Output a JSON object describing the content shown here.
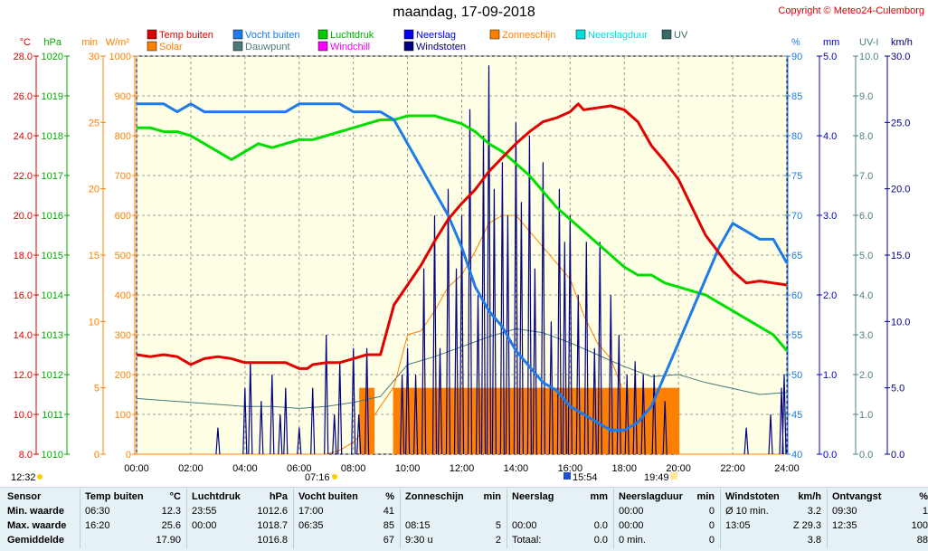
{
  "title": "maandag, 17-09-2018",
  "copyright": "Copyright © Meteo24-Culemborg",
  "legend": [
    {
      "label": "Temp buiten",
      "color": "#e00000"
    },
    {
      "label": "Solar",
      "color": "#ff8000"
    },
    {
      "label": "Vocht buiten",
      "color": "#1e7be8"
    },
    {
      "label": "Dauwpunt",
      "color": "#4a7a7a"
    },
    {
      "label": "Luchtdruk",
      "color": "#00cc00"
    },
    {
      "label": "Windchill",
      "color": "#ff00ff"
    },
    {
      "label": "Neerslag",
      "color": "#0000ee"
    },
    {
      "label": "Windstoten",
      "color": "#000080"
    },
    {
      "label": "Zonneschijn",
      "color": "#ff8000"
    },
    {
      "label": "Neerslagduur",
      "color": "#00dddd"
    },
    {
      "label": "UV",
      "color": "#3a6b6b"
    }
  ],
  "axis_units": {
    "temp": "°C",
    "pressure": "hPa",
    "minutes": "min",
    "solar": "W/m²",
    "humidity": "%",
    "rain": "mm",
    "uv": "UV-I",
    "wind": "km/h"
  },
  "chart_data": {
    "type": "line",
    "x_label": "time",
    "xlim": [
      0,
      24
    ],
    "x_ticks": [
      "00:00",
      "02:00",
      "04:00",
      "06:00",
      "08:00",
      "10:00",
      "12:00",
      "14:00",
      "16:00",
      "18:00",
      "20:00",
      "22:00",
      "24:00"
    ],
    "axes": {
      "temp": {
        "range": [
          8,
          28
        ],
        "ticks": [
          "8.0",
          "10.0",
          "12.0",
          "14.0",
          "16.0",
          "18.0",
          "20.0",
          "22.0",
          "24.0",
          "26.0",
          "28.0"
        ]
      },
      "pressure": {
        "range": [
          1010,
          1020
        ],
        "ticks": [
          "1010",
          "1011",
          "1012",
          "1013",
          "1014",
          "1015",
          "1016",
          "1017",
          "1018",
          "1019",
          "1020"
        ]
      },
      "minutes": {
        "range": [
          0,
          30
        ],
        "ticks": [
          "0",
          "5",
          "10",
          "15",
          "20",
          "25",
          "30"
        ]
      },
      "solar": {
        "range": [
          0,
          1000
        ],
        "ticks": [
          "0",
          "100",
          "200",
          "300",
          "400",
          "500",
          "600",
          "700",
          "800",
          "900",
          "1000"
        ]
      },
      "humidity": {
        "range": [
          40,
          90
        ],
        "ticks": [
          "40",
          "45",
          "50",
          "55",
          "60",
          "65",
          "70",
          "75",
          "80",
          "85",
          "90"
        ]
      },
      "rain": {
        "range": [
          0,
          5
        ],
        "ticks": [
          "0.0",
          "1.0",
          "2.0",
          "3.0",
          "4.0",
          "5.0"
        ]
      },
      "uv": {
        "range": [
          0,
          10
        ],
        "ticks": [
          "0.0",
          "1.0",
          "2.0",
          "3.0",
          "4.0",
          "5.0",
          "6.0",
          "7.0",
          "8.0",
          "9.0",
          "10.0"
        ]
      },
      "wind": {
        "range": [
          0,
          30
        ],
        "ticks": [
          "0.0",
          "5.0",
          "10.0",
          "15.0",
          "20.0",
          "25.0",
          "30.0"
        ]
      }
    },
    "series": [
      {
        "name": "Temp buiten",
        "axis": "temp",
        "x": [
          0,
          0.5,
          1,
          1.5,
          2,
          2.5,
          3,
          3.5,
          4,
          4.5,
          5,
          5.5,
          6,
          6.3,
          6.5,
          7,
          7.5,
          8,
          8.5,
          9,
          9.5,
          10,
          10.5,
          11,
          11.5,
          12,
          12.5,
          13,
          13.5,
          14,
          14.5,
          15,
          15.5,
          16,
          16.3,
          16.5,
          17,
          17.5,
          18,
          18.5,
          19,
          19.5,
          20,
          20.5,
          21,
          21.5,
          22,
          22.5,
          23,
          23.5,
          24
        ],
        "values": [
          13.0,
          12.9,
          13.0,
          12.9,
          12.5,
          12.8,
          12.9,
          12.8,
          12.6,
          12.6,
          12.6,
          12.6,
          12.3,
          12.3,
          12.5,
          12.6,
          12.6,
          12.8,
          13.0,
          13.0,
          15.5,
          16.5,
          17.5,
          18.7,
          19.8,
          20.6,
          21.3,
          22.2,
          22.9,
          23.6,
          24.2,
          24.7,
          24.9,
          25.2,
          25.6,
          25.3,
          25.4,
          25.5,
          25.3,
          24.7,
          23.5,
          22.7,
          21.8,
          20.4,
          19.0,
          18.1,
          17.2,
          16.6,
          16.7,
          16.6,
          16.5
        ]
      },
      {
        "name": "Vocht buiten",
        "axis": "humidity",
        "x": [
          0,
          0.5,
          1,
          1.5,
          2,
          2.5,
          3,
          3.5,
          4,
          4.5,
          5,
          5.5,
          6,
          6.5,
          7,
          7.5,
          8,
          8.5,
          9,
          9.5,
          10,
          10.5,
          11,
          11.5,
          12,
          12.5,
          13,
          13.5,
          14,
          14.5,
          15,
          15.5,
          16,
          16.5,
          17,
          17.5,
          18,
          18.5,
          19,
          19.5,
          20,
          20.5,
          21,
          21.5,
          22,
          22.5,
          23,
          23.5,
          24
        ],
        "values": [
          84,
          84,
          84,
          83,
          84,
          83,
          83,
          83,
          83,
          83,
          83,
          83,
          84,
          84,
          84,
          84,
          83,
          83,
          83,
          82,
          79,
          76,
          73,
          70,
          66,
          61,
          58,
          56,
          53,
          51,
          49,
          48,
          46,
          45,
          44,
          43,
          43,
          44,
          46,
          50,
          54,
          58,
          62,
          66,
          69,
          68,
          67,
          67,
          64
        ]
      },
      {
        "name": "Luchtdruk",
        "axis": "pressure",
        "x": [
          0,
          0.5,
          1,
          1.5,
          2,
          2.5,
          3,
          3.5,
          4,
          4.5,
          5,
          5.5,
          6,
          6.5,
          7,
          7.5,
          8,
          8.5,
          9,
          9.5,
          10,
          10.5,
          11,
          11.5,
          12,
          12.5,
          13,
          13.5,
          14,
          14.5,
          15,
          15.5,
          16,
          16.5,
          17,
          17.5,
          18,
          18.5,
          19,
          19.5,
          20,
          20.5,
          21,
          21.5,
          22,
          22.5,
          23,
          23.5,
          24
        ],
        "values": [
          1018.2,
          1018.2,
          1018.1,
          1018.1,
          1018.0,
          1017.8,
          1017.6,
          1017.4,
          1017.6,
          1017.8,
          1017.7,
          1017.8,
          1017.9,
          1017.9,
          1018.0,
          1018.1,
          1018.2,
          1018.3,
          1018.4,
          1018.4,
          1018.5,
          1018.5,
          1018.5,
          1018.4,
          1018.3,
          1018.1,
          1017.8,
          1017.6,
          1017.3,
          1017.0,
          1016.6,
          1016.2,
          1015.9,
          1015.6,
          1015.3,
          1015.0,
          1014.7,
          1014.5,
          1014.5,
          1014.3,
          1014.2,
          1014.1,
          1014.0,
          1013.8,
          1013.6,
          1013.4,
          1013.2,
          1013.0,
          1012.6
        ]
      },
      {
        "name": "Dauwpunt",
        "axis": "temp",
        "x": [
          0,
          1,
          2,
          3,
          4,
          5,
          6,
          7,
          8,
          9,
          10,
          11,
          12,
          13,
          14,
          15,
          16,
          17,
          18,
          19,
          20,
          21,
          22,
          23,
          24
        ],
        "values": [
          10.8,
          10.7,
          10.6,
          10.5,
          10.4,
          10.4,
          10.3,
          10.4,
          10.6,
          10.9,
          12.5,
          12.9,
          13.4,
          13.9,
          14.3,
          14.1,
          13.6,
          13.0,
          12.4,
          11.9,
          12.0,
          11.6,
          11.3,
          11.0,
          11.1
        ]
      },
      {
        "name": "Solar",
        "axis": "solar",
        "x": [
          0,
          7,
          7.5,
          8,
          8.5,
          9,
          9.5,
          10,
          10.5,
          11,
          11.5,
          12,
          12.5,
          13,
          13.5,
          14,
          14.5,
          15,
          15.5,
          16,
          16.5,
          17,
          17.5,
          18,
          18.5,
          19,
          19.5,
          20,
          24
        ],
        "values": [
          0,
          0,
          10,
          30,
          70,
          120,
          170,
          300,
          310,
          360,
          420,
          450,
          510,
          580,
          600,
          600,
          560,
          520,
          480,
          440,
          350,
          280,
          240,
          150,
          80,
          30,
          10,
          0,
          0
        ]
      },
      {
        "name": "Zonneschijn",
        "axis": "minutes",
        "type": "bar",
        "x": [
          8.25,
          9.5,
          9.8,
          10,
          10.5,
          11,
          11.5,
          12,
          12.5,
          13,
          13.5,
          14,
          14.5,
          15,
          15.5,
          16,
          16.5,
          17,
          17.5,
          18,
          18.5,
          19,
          19.5
        ],
        "values": [
          5,
          5,
          5,
          5,
          5,
          5,
          5,
          5,
          5,
          5,
          5,
          5,
          5,
          5,
          5,
          5,
          5,
          5,
          5,
          5,
          5,
          5,
          5
        ]
      },
      {
        "name": "Windstoten",
        "axis": "wind",
        "type": "spikes",
        "x": [
          3,
          4,
          4.2,
          4.6,
          5,
          5.3,
          5.5,
          6,
          6.5,
          7,
          7.3,
          7.5,
          8,
          8.2,
          8.5,
          9.8,
          10,
          10.3,
          10.6,
          11,
          11.2,
          11.5,
          11.8,
          12,
          12.3,
          12.6,
          12.8,
          13,
          13.2,
          13.5,
          13.7,
          14,
          14.2,
          14.5,
          14.7,
          15,
          15.3,
          15.6,
          15.8,
          16,
          16.3,
          16.6,
          16.9,
          17.1,
          17.5,
          17.8,
          18.1,
          18.4,
          18.7,
          19.1,
          19.5,
          22.5,
          23.4,
          23.8,
          23.9
        ],
        "values": [
          2,
          5,
          7,
          4,
          6,
          3,
          5,
          2,
          5,
          9,
          3,
          7,
          8,
          3,
          8,
          6,
          8,
          6,
          14,
          18,
          8,
          20,
          14,
          18,
          26,
          12,
          24,
          29.3,
          20,
          22,
          18,
          25,
          19,
          24,
          14,
          22,
          10,
          20,
          16,
          18,
          12,
          16,
          8,
          16,
          12,
          9,
          6,
          7,
          6,
          6,
          4,
          2,
          3,
          5,
          6
        ]
      }
    ]
  },
  "time_markers": {
    "moonset": "12:32",
    "sunrise": "07:16",
    "solar_noon": "15:54",
    "sunset": "19:49"
  },
  "table": {
    "headers": {
      "sensor": "Sensor",
      "temp": [
        "Temp buiten",
        "°C"
      ],
      "pressure": [
        "Luchtdruk",
        "hPa"
      ],
      "humidity": [
        "Vocht buiten",
        "%"
      ],
      "sunshine": [
        "Zonneschijn",
        "min"
      ],
      "rain": [
        "Neerslag",
        "mm"
      ],
      "rainduration": [
        "Neerslagduur",
        "min"
      ],
      "gusts": [
        "Windstoten",
        "km/h"
      ],
      "receive": [
        "Ontvangst",
        "%"
      ]
    },
    "row_labels": [
      "Min. waarde",
      "Max. waarde",
      "Gemiddelde"
    ],
    "temp": [
      [
        "06:30",
        "12.3"
      ],
      [
        "16:20",
        "25.6"
      ],
      [
        "",
        "17.90"
      ]
    ],
    "pressure": [
      [
        "23:55",
        "1012.6"
      ],
      [
        "00:00",
        "1018.7"
      ],
      [
        "",
        "1016.8"
      ]
    ],
    "humidity": [
      [
        "17:00",
        "41"
      ],
      [
        "06:35",
        "85"
      ],
      [
        "",
        "67"
      ]
    ],
    "sunshine": [
      [
        "",
        ""
      ],
      [
        "08:15",
        "5"
      ],
      [
        "9:30 u",
        "2"
      ]
    ],
    "rain": [
      [
        "",
        ""
      ],
      [
        "00:00",
        "0.0"
      ],
      [
        "Totaal:",
        "0.0"
      ]
    ],
    "rainduration": [
      [
        "00:00",
        "0"
      ],
      [
        "00:00",
        "0"
      ],
      [
        "0 min.",
        "0"
      ]
    ],
    "gusts": [
      [
        "Ø 10 min.",
        "3.2"
      ],
      [
        "13:05",
        "Z 29.3"
      ],
      [
        "",
        "3.8"
      ]
    ],
    "receive": [
      [
        "09:30",
        "1"
      ],
      [
        "12:35",
        "100"
      ],
      [
        "",
        "88"
      ]
    ]
  },
  "colors": {
    "plot_bg": "#ffffe6",
    "grid": "#9a9a9a",
    "temp_axis": "#e00000",
    "pressure_axis": "#00aa00",
    "minutes_axis": "#ff8000",
    "humidity_axis": "#1e7be8",
    "rain_axis": "#0000cc",
    "uv_axis": "#4a8080",
    "wind_axis": "#000080"
  }
}
